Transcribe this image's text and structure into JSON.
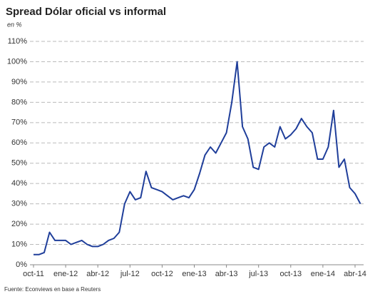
{
  "chart_data": {
    "type": "line",
    "title": "Spread Dólar oficial vs informal",
    "subtitle": "en %",
    "source": "Fuente: Econviews en base a Reuters",
    "categories": [
      "oct-11",
      null,
      null,
      null,
      null,
      null,
      "ene-12",
      null,
      null,
      null,
      null,
      null,
      "abr-12",
      null,
      null,
      null,
      null,
      null,
      "jul-12",
      null,
      null,
      null,
      null,
      null,
      "oct-12",
      null,
      null,
      null,
      null,
      null,
      "ene-13",
      null,
      null,
      null,
      null,
      null,
      "abr-13",
      null,
      null,
      null,
      null,
      null,
      "jul-13",
      null,
      null,
      null,
      null,
      null,
      "oct-13",
      null,
      null,
      null,
      null,
      null,
      "ene-14",
      null,
      null,
      null,
      null,
      null,
      "abr-14",
      null
    ],
    "values": [
      5,
      5,
      6,
      16,
      12,
      12,
      12,
      10,
      11,
      12,
      10,
      9,
      9,
      10,
      12,
      13,
      16,
      30,
      36,
      32,
      33,
      46,
      38,
      37,
      36,
      34,
      32,
      33,
      34,
      33,
      37,
      45,
      54,
      58,
      55,
      60,
      65,
      80,
      100,
      68,
      62,
      48,
      47,
      58,
      60,
      58,
      68,
      62,
      64,
      67,
      72,
      68,
      65,
      52,
      52,
      58,
      76,
      48,
      52,
      38,
      35,
      30
    ],
    "color": "#1f3e9a",
    "ylim": [
      0,
      110
    ],
    "yticks": [
      {
        "value": 0,
        "label": "0%"
      },
      {
        "value": 10,
        "label": "10%"
      },
      {
        "value": 20,
        "label": "20%"
      },
      {
        "value": 30,
        "label": "30%"
      },
      {
        "value": 40,
        "label": "40%"
      },
      {
        "value": 50,
        "label": "50%"
      },
      {
        "value": 60,
        "label": "60%"
      },
      {
        "value": 70,
        "label": "70%"
      },
      {
        "value": 80,
        "label": "80%"
      },
      {
        "value": 90,
        "label": "90%"
      },
      {
        "value": 100,
        "label": "100%"
      },
      {
        "value": 110,
        "label": "110%"
      }
    ],
    "grid": true
  }
}
